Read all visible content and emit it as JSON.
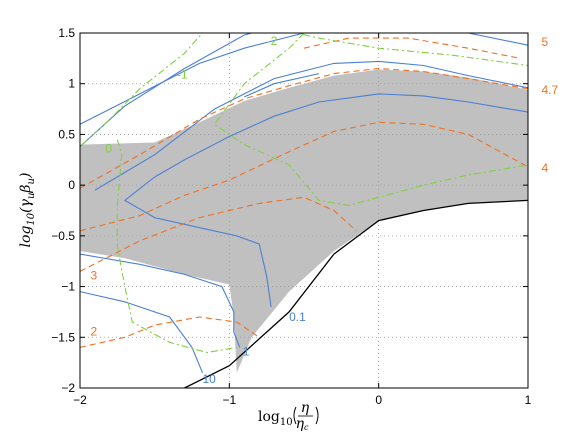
{
  "chart_data": {
    "type": "line",
    "title": "",
    "xlabel_main": "log",
    "xlabel_sub": "10",
    "xlabel_frac_num": "η",
    "xlabel_frac_den": "η",
    "xlabel_frac_den_sub": "c",
    "ylabel_main": "log",
    "ylabel_sub": "10",
    "ylabel_arg": "(γ",
    "ylabel_arg_sub1": "u",
    "ylabel_arg_mid": "β",
    "ylabel_arg_sub2": "u",
    "ylabel_arg_end": ")",
    "xlim": [
      -2,
      1
    ],
    "ylim": [
      -2,
      1.5
    ],
    "grid": true,
    "xticks": [
      -2,
      -1,
      0,
      1
    ],
    "xtick_labels": [
      "−2",
      "−1",
      "0",
      "1"
    ],
    "yticks": [
      -2,
      -1.5,
      -1,
      -0.5,
      0,
      0.5,
      1,
      1.5
    ],
    "ytick_labels": [
      "−2",
      "−1.5",
      "−1",
      "−0.5",
      "0",
      "0.5",
      "1",
      "1.5"
    ],
    "colors": {
      "region": "#c0c0c0",
      "boundary": "#000000",
      "blue": "#4a7fd4",
      "orange": "#f07020",
      "green": "#80d040"
    },
    "shaded_region": {
      "upper": [
        [
          -2,
          0.4
        ],
        [
          -1.5,
          0.42
        ],
        [
          -1.2,
          0.62
        ],
        [
          -0.9,
          0.83
        ],
        [
          -0.6,
          0.96
        ],
        [
          -0.3,
          1.08
        ],
        [
          0,
          1.14
        ],
        [
          0.3,
          1.12
        ],
        [
          0.6,
          1.06
        ],
        [
          1,
          0.94
        ]
      ],
      "lower": [
        [
          1,
          -0.15
        ],
        [
          0.6,
          -0.18
        ],
        [
          0.3,
          -0.25
        ],
        [
          0,
          -0.35
        ],
        [
          -0.3,
          -0.65
        ],
        [
          -0.6,
          -1.05
        ],
        [
          -0.85,
          -1.5
        ],
        [
          -0.95,
          -1.85
        ]
      ],
      "left_notch": [
        [
          -0.95,
          -1.85
        ],
        [
          -0.97,
          -1.3
        ],
        [
          -1.0,
          -0.98
        ],
        [
          -1.3,
          -0.88
        ],
        [
          -1.7,
          -0.72
        ],
        [
          -2,
          -0.65
        ]
      ]
    },
    "series": [
      {
        "name": "boundary",
        "style": "black-solid",
        "points": [
          [
            -1.3,
            -2
          ],
          [
            -1.0,
            -1.78
          ],
          [
            -0.6,
            -1.25
          ],
          [
            -0.3,
            -0.68
          ],
          [
            0,
            -0.35
          ],
          [
            0.3,
            -0.25
          ],
          [
            0.6,
            -0.18
          ],
          [
            1,
            -0.15
          ]
        ]
      },
      {
        "name": "blue-top-left",
        "style": "blue-solid",
        "points": [
          [
            -2,
            0.38
          ],
          [
            -1.7,
            0.78
          ],
          [
            -1.3,
            1.15
          ],
          [
            -0.9,
            1.48
          ],
          [
            -0.85,
            1.5
          ]
        ]
      },
      {
        "name": "blue-upper-1",
        "style": "blue-solid",
        "points": [
          [
            -2,
            0.6
          ],
          [
            -1.6,
            0.9
          ],
          [
            -1.2,
            1.2
          ],
          [
            -0.9,
            1.35
          ],
          [
            -0.5,
            1.5
          ]
        ]
      },
      {
        "name": "blue-upper-2",
        "style": "blue-solid",
        "points": [
          [
            -1.9,
            -0.05
          ],
          [
            -1.5,
            0.3
          ],
          [
            -1.1,
            0.75
          ],
          [
            -0.7,
            1.05
          ],
          [
            -0.3,
            1.2
          ],
          [
            0,
            1.22
          ],
          [
            0.3,
            1.18
          ],
          [
            0.6,
            1.08
          ],
          [
            1,
            0.96
          ]
        ]
      },
      {
        "name": "blue-upper-3",
        "style": "blue-solid",
        "points": [
          [
            0.1,
            1.5
          ],
          [
            0.6,
            1.5
          ],
          [
            1,
            1.38
          ]
        ]
      },
      {
        "name": "blue-upper-4",
        "style": "blue-solid",
        "points": [
          [
            -0.9,
            0.87
          ],
          [
            -0.7,
            1.0
          ],
          [
            -0.4,
            1.1
          ]
        ]
      },
      {
        "name": "blue-mid",
        "style": "blue-solid",
        "points": [
          [
            -1.5,
            0.08
          ],
          [
            -1.3,
            0.25
          ],
          [
            -1.0,
            0.48
          ],
          [
            -0.7,
            0.68
          ],
          [
            -0.4,
            0.82
          ],
          [
            0,
            0.9
          ],
          [
            0.3,
            0.88
          ],
          [
            0.6,
            0.82
          ],
          [
            1,
            0.72
          ]
        ]
      },
      {
        "name": "blue-loop",
        "style": "blue-solid",
        "points": [
          [
            -1.5,
            0.08
          ],
          [
            -1.7,
            -0.15
          ],
          [
            -1.5,
            -0.32
          ],
          [
            -1.2,
            -0.42
          ],
          [
            -0.95,
            -0.5
          ],
          [
            -0.8,
            -0.58
          ],
          [
            -0.75,
            -0.9
          ],
          [
            -0.72,
            -1.2
          ]
        ]
      },
      {
        "name": "blue-1",
        "style": "blue-solid",
        "points": [
          [
            -2,
            -0.68
          ],
          [
            -1.6,
            -0.78
          ],
          [
            -1.3,
            -0.88
          ],
          [
            -1.05,
            -1.0
          ],
          [
            -0.97,
            -1.25
          ],
          [
            -0.97,
            -1.45
          ],
          [
            -0.93,
            -1.6
          ]
        ]
      },
      {
        "name": "blue-10",
        "style": "blue-solid",
        "points": [
          [
            -2,
            -1.05
          ],
          [
            -1.7,
            -1.15
          ],
          [
            -1.4,
            -1.3
          ],
          [
            -1.25,
            -1.6
          ],
          [
            -1.18,
            -1.85
          ]
        ]
      },
      {
        "name": "orange-5",
        "style": "orange-dashed",
        "points": [
          [
            -0.5,
            1.35
          ],
          [
            -0.2,
            1.45
          ],
          [
            0.2,
            1.45
          ],
          [
            0.6,
            1.35
          ],
          [
            0.95,
            1.25
          ]
        ]
      },
      {
        "name": "orange-4.7",
        "style": "orange-dashed",
        "points": [
          [
            -2,
            -0.03
          ],
          [
            -1.6,
            0.3
          ],
          [
            -1.2,
            0.65
          ],
          [
            -0.9,
            0.85
          ],
          [
            -0.6,
            0.98
          ],
          [
            -0.3,
            1.1
          ],
          [
            0,
            1.15
          ],
          [
            0.3,
            1.12
          ],
          [
            0.6,
            1.05
          ],
          [
            1,
            0.95
          ]
        ]
      },
      {
        "name": "orange-4",
        "style": "orange-dashed",
        "points": [
          [
            -2,
            -0.45
          ],
          [
            -1.6,
            -0.3
          ],
          [
            -1.3,
            -0.1
          ],
          [
            -1.0,
            0.05
          ],
          [
            -0.6,
            0.33
          ],
          [
            -0.3,
            0.53
          ],
          [
            0,
            0.62
          ],
          [
            0.3,
            0.6
          ],
          [
            0.6,
            0.5
          ],
          [
            1,
            0.18
          ]
        ]
      },
      {
        "name": "orange-3",
        "style": "orange-dashed",
        "points": [
          [
            -2,
            -0.85
          ],
          [
            -1.6,
            -0.55
          ],
          [
            -1.2,
            -0.32
          ],
          [
            -0.8,
            -0.18
          ],
          [
            -0.5,
            -0.12
          ],
          [
            -0.3,
            -0.25
          ],
          [
            -0.15,
            -0.45
          ]
        ]
      },
      {
        "name": "orange-2",
        "style": "orange-dashed",
        "points": [
          [
            -2,
            -1.6
          ],
          [
            -1.7,
            -1.5
          ],
          [
            -1.5,
            -1.38
          ],
          [
            -1.2,
            -1.3
          ],
          [
            -0.95,
            -1.35
          ],
          [
            -0.8,
            -1.5
          ]
        ]
      },
      {
        "name": "green-top",
        "style": "green-dashdot",
        "points": [
          [
            -0.7,
            1.55
          ],
          [
            -0.4,
            1.45
          ],
          [
            0,
            1.35
          ],
          [
            0.5,
            1.28
          ],
          [
            1,
            1.18
          ]
        ]
      },
      {
        "name": "green-1",
        "style": "green-dashdot",
        "points": [
          [
            -1.15,
            1.55
          ],
          [
            -1.3,
            1.3
          ],
          [
            -1.6,
            0.95
          ],
          [
            -1.8,
            0.65
          ],
          [
            -2,
            0.38
          ]
        ]
      },
      {
        "name": "green-0",
        "style": "green-dashdot",
        "points": [
          [
            -1.75,
            0.45
          ],
          [
            -1.72,
            0.3
          ],
          [
            -1.75,
            -0.2
          ],
          [
            -1.75,
            -0.6
          ],
          [
            -1.7,
            -1.0
          ],
          [
            -1.65,
            -1.35
          ],
          [
            -1.4,
            -1.55
          ],
          [
            -1.15,
            -1.65
          ],
          [
            -0.95,
            -1.6
          ]
        ]
      },
      {
        "name": "green-2",
        "style": "green-dashdot",
        "points": [
          [
            -0.5,
            1.5
          ],
          [
            -0.6,
            1.35
          ],
          [
            -0.9,
            1.0
          ],
          [
            -1.1,
            0.6
          ],
          [
            -0.9,
            0.4
          ],
          [
            -0.6,
            0.2
          ],
          [
            -0.4,
            -0.15
          ],
          [
            -0.2,
            -0.2
          ],
          [
            0,
            -0.12
          ],
          [
            0.3,
            0.0
          ],
          [
            0.6,
            0.1
          ],
          [
            1,
            0.2
          ]
        ]
      }
    ],
    "contour_labels": [
      {
        "text": "5",
        "x": 1.09,
        "y": 1.37,
        "color": "orange"
      },
      {
        "text": "4.7",
        "x": 1.09,
        "y": 0.9,
        "color": "orange"
      },
      {
        "text": "4",
        "x": 1.09,
        "y": 0.13,
        "color": "orange"
      },
      {
        "text": "3",
        "x": -1.93,
        "y": -0.93,
        "color": "orange"
      },
      {
        "text": "2",
        "x": -1.93,
        "y": -1.48,
        "color": "orange"
      },
      {
        "text": "-2",
        "x": -0.75,
        "y": 1.38,
        "color": "green"
      },
      {
        "text": "-1",
        "x": -1.35,
        "y": 1.05,
        "color": "green"
      },
      {
        "text": "0",
        "x": -1.83,
        "y": 0.32,
        "color": "green"
      },
      {
        "text": "0.1",
        "x": -0.6,
        "y": -1.34,
        "color": "blue"
      },
      {
        "text": "1",
        "x": -0.91,
        "y": -1.68,
        "color": "blue"
      },
      {
        "text": "10",
        "x": -1.18,
        "y": -1.95,
        "color": "blue"
      }
    ]
  }
}
